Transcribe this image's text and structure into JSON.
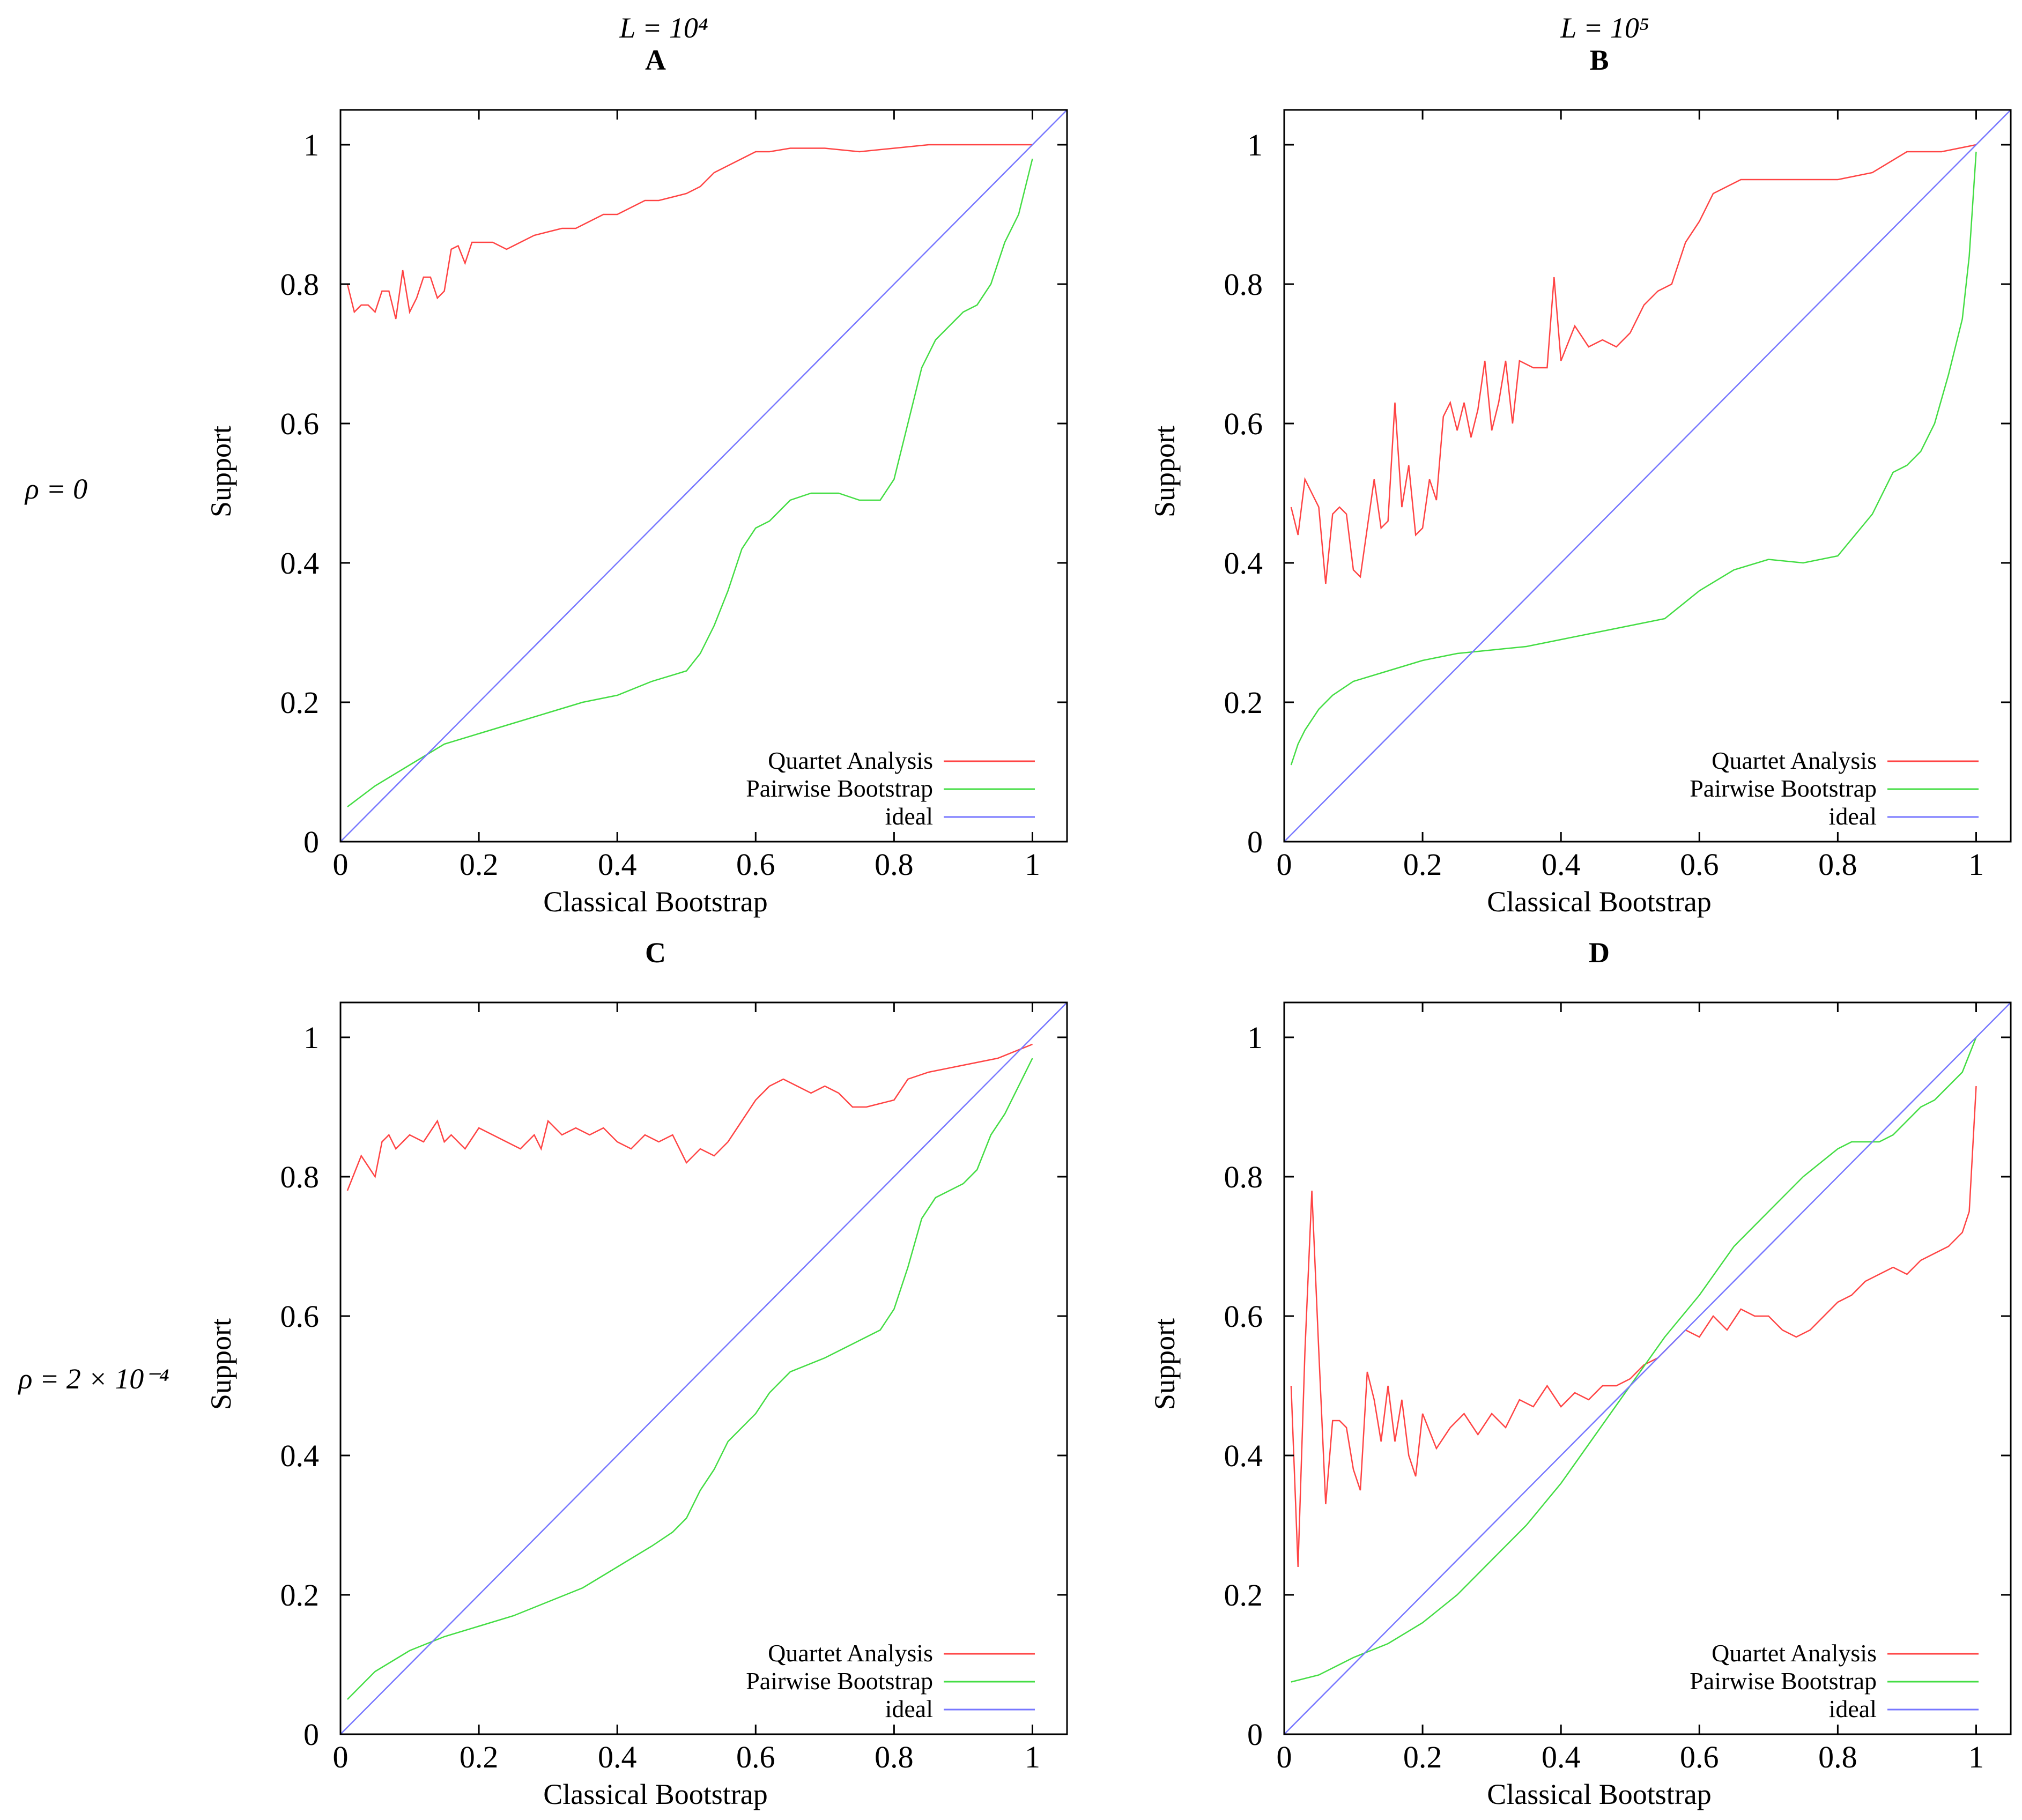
{
  "figure": {
    "column_titles": [
      "L = 10⁴",
      "L = 10⁵"
    ],
    "row_labels": [
      "ρ = 0",
      "ρ = 2 × 10⁻⁴"
    ]
  },
  "chart_data": [
    {
      "type": "line",
      "title": "A",
      "xlabel": "Classical Bootstrap",
      "ylabel": "Support",
      "xlim": [
        0,
        1.05
      ],
      "ylim": [
        0,
        1.05
      ],
      "xticks": [
        0,
        0.2,
        0.4,
        0.6,
        0.8,
        1
      ],
      "yticks": [
        0,
        0.2,
        0.4,
        0.6,
        0.8,
        1
      ],
      "legend": "bottom-right",
      "series": [
        {
          "name": "Quartet Analysis",
          "color": "#ff4444",
          "x": [
            0.01,
            0.02,
            0.03,
            0.04,
            0.05,
            0.06,
            0.07,
            0.08,
            0.09,
            0.1,
            0.11,
            0.12,
            0.13,
            0.14,
            0.15,
            0.16,
            0.17,
            0.18,
            0.19,
            0.2,
            0.22,
            0.24,
            0.26,
            0.28,
            0.3,
            0.32,
            0.34,
            0.36,
            0.38,
            0.4,
            0.42,
            0.44,
            0.46,
            0.48,
            0.5,
            0.52,
            0.54,
            0.56,
            0.58,
            0.6,
            0.62,
            0.65,
            0.7,
            0.75,
            0.8,
            0.85,
            0.9,
            0.95,
            1.0
          ],
          "y": [
            0.8,
            0.76,
            0.77,
            0.77,
            0.76,
            0.79,
            0.79,
            0.75,
            0.82,
            0.76,
            0.78,
            0.81,
            0.81,
            0.78,
            0.79,
            0.85,
            0.855,
            0.83,
            0.86,
            0.86,
            0.86,
            0.85,
            0.86,
            0.87,
            0.875,
            0.88,
            0.88,
            0.89,
            0.9,
            0.9,
            0.91,
            0.92,
            0.92,
            0.925,
            0.93,
            0.94,
            0.96,
            0.97,
            0.98,
            0.99,
            0.99,
            0.995,
            0.995,
            0.99,
            0.995,
            1.0,
            1.0,
            1.0,
            1.0
          ]
        },
        {
          "name": "Pairwise Bootstrap",
          "color": "#44dd44",
          "x": [
            0.01,
            0.05,
            0.1,
            0.15,
            0.2,
            0.25,
            0.3,
            0.35,
            0.4,
            0.45,
            0.5,
            0.52,
            0.54,
            0.56,
            0.58,
            0.6,
            0.62,
            0.65,
            0.68,
            0.7,
            0.72,
            0.75,
            0.78,
            0.8,
            0.82,
            0.84,
            0.86,
            0.88,
            0.9,
            0.92,
            0.94,
            0.96,
            0.98,
            1.0
          ],
          "y": [
            0.05,
            0.08,
            0.11,
            0.14,
            0.155,
            0.17,
            0.185,
            0.2,
            0.21,
            0.23,
            0.245,
            0.27,
            0.31,
            0.36,
            0.42,
            0.45,
            0.46,
            0.49,
            0.5,
            0.5,
            0.5,
            0.49,
            0.49,
            0.52,
            0.6,
            0.68,
            0.72,
            0.74,
            0.76,
            0.77,
            0.8,
            0.86,
            0.9,
            0.98
          ]
        },
        {
          "name": "ideal",
          "color": "#7777ff",
          "x": [
            0,
            1.05
          ],
          "y": [
            0,
            1.05
          ]
        }
      ]
    },
    {
      "type": "line",
      "title": "B",
      "xlabel": "Classical Bootstrap",
      "ylabel": "Support",
      "xlim": [
        0,
        1.05
      ],
      "ylim": [
        0,
        1.05
      ],
      "xticks": [
        0,
        0.2,
        0.4,
        0.6,
        0.8,
        1
      ],
      "yticks": [
        0,
        0.2,
        0.4,
        0.6,
        0.8,
        1
      ],
      "legend": "bottom-right",
      "series": [
        {
          "name": "Quartet Analysis",
          "color": "#ff4444",
          "x": [
            0.01,
            0.02,
            0.03,
            0.04,
            0.05,
            0.06,
            0.07,
            0.08,
            0.09,
            0.1,
            0.11,
            0.12,
            0.13,
            0.14,
            0.15,
            0.16,
            0.17,
            0.18,
            0.19,
            0.2,
            0.21,
            0.22,
            0.23,
            0.24,
            0.25,
            0.26,
            0.27,
            0.28,
            0.29,
            0.3,
            0.31,
            0.32,
            0.33,
            0.34,
            0.36,
            0.38,
            0.39,
            0.4,
            0.42,
            0.44,
            0.46,
            0.48,
            0.5,
            0.52,
            0.54,
            0.56,
            0.58,
            0.6,
            0.62,
            0.64,
            0.66,
            0.7,
            0.75,
            0.8,
            0.85,
            0.9,
            0.95,
            1.0
          ],
          "y": [
            0.48,
            0.44,
            0.52,
            0.5,
            0.48,
            0.37,
            0.47,
            0.48,
            0.47,
            0.39,
            0.38,
            0.45,
            0.52,
            0.45,
            0.46,
            0.63,
            0.48,
            0.54,
            0.44,
            0.45,
            0.52,
            0.49,
            0.61,
            0.63,
            0.59,
            0.63,
            0.58,
            0.62,
            0.69,
            0.59,
            0.63,
            0.69,
            0.6,
            0.69,
            0.68,
            0.68,
            0.81,
            0.69,
            0.74,
            0.71,
            0.72,
            0.71,
            0.73,
            0.77,
            0.79,
            0.8,
            0.86,
            0.89,
            0.93,
            0.94,
            0.95,
            0.95,
            0.95,
            0.95,
            0.96,
            0.99,
            0.99,
            1.0
          ]
        },
        {
          "name": "Pairwise Bootstrap",
          "color": "#44dd44",
          "x": [
            0.01,
            0.02,
            0.03,
            0.05,
            0.07,
            0.1,
            0.15,
            0.2,
            0.25,
            0.3,
            0.35,
            0.4,
            0.45,
            0.5,
            0.55,
            0.6,
            0.65,
            0.7,
            0.75,
            0.8,
            0.85,
            0.88,
            0.9,
            0.92,
            0.94,
            0.96,
            0.98,
            0.99,
            1.0
          ],
          "y": [
            0.11,
            0.14,
            0.16,
            0.19,
            0.21,
            0.23,
            0.245,
            0.26,
            0.27,
            0.275,
            0.28,
            0.29,
            0.3,
            0.31,
            0.32,
            0.36,
            0.39,
            0.405,
            0.4,
            0.41,
            0.47,
            0.53,
            0.54,
            0.56,
            0.6,
            0.67,
            0.75,
            0.84,
            0.99
          ]
        },
        {
          "name": "ideal",
          "color": "#7777ff",
          "x": [
            0,
            1.05
          ],
          "y": [
            0,
            1.05
          ]
        }
      ]
    },
    {
      "type": "line",
      "title": "C",
      "xlabel": "Classical Bootstrap",
      "ylabel": "Support",
      "xlim": [
        0,
        1.05
      ],
      "ylim": [
        0,
        1.05
      ],
      "xticks": [
        0,
        0.2,
        0.4,
        0.6,
        0.8,
        1
      ],
      "yticks": [
        0,
        0.2,
        0.4,
        0.6,
        0.8,
        1
      ],
      "legend": "bottom-right",
      "series": [
        {
          "name": "Quartet Analysis",
          "color": "#ff4444",
          "x": [
            0.01,
            0.03,
            0.05,
            0.06,
            0.07,
            0.08,
            0.1,
            0.12,
            0.14,
            0.15,
            0.16,
            0.18,
            0.2,
            0.22,
            0.24,
            0.26,
            0.28,
            0.29,
            0.3,
            0.32,
            0.34,
            0.36,
            0.38,
            0.4,
            0.42,
            0.44,
            0.46,
            0.48,
            0.5,
            0.52,
            0.54,
            0.56,
            0.58,
            0.6,
            0.62,
            0.64,
            0.66,
            0.68,
            0.7,
            0.72,
            0.74,
            0.76,
            0.78,
            0.8,
            0.82,
            0.85,
            0.9,
            0.95,
            1.0
          ],
          "y": [
            0.78,
            0.83,
            0.8,
            0.85,
            0.86,
            0.84,
            0.86,
            0.85,
            0.88,
            0.85,
            0.86,
            0.84,
            0.87,
            0.86,
            0.85,
            0.84,
            0.86,
            0.84,
            0.88,
            0.86,
            0.87,
            0.86,
            0.87,
            0.85,
            0.84,
            0.86,
            0.85,
            0.86,
            0.82,
            0.84,
            0.83,
            0.85,
            0.88,
            0.91,
            0.93,
            0.94,
            0.93,
            0.92,
            0.93,
            0.92,
            0.9,
            0.9,
            0.905,
            0.91,
            0.94,
            0.95,
            0.96,
            0.97,
            0.99
          ]
        },
        {
          "name": "Pairwise Bootstrap",
          "color": "#44dd44",
          "x": [
            0.01,
            0.05,
            0.1,
            0.15,
            0.2,
            0.25,
            0.3,
            0.35,
            0.4,
            0.45,
            0.48,
            0.5,
            0.52,
            0.54,
            0.56,
            0.58,
            0.6,
            0.62,
            0.65,
            0.7,
            0.72,
            0.74,
            0.76,
            0.78,
            0.8,
            0.82,
            0.84,
            0.86,
            0.88,
            0.9,
            0.92,
            0.94,
            0.96,
            0.98,
            1.0
          ],
          "y": [
            0.05,
            0.09,
            0.12,
            0.14,
            0.155,
            0.17,
            0.19,
            0.21,
            0.24,
            0.27,
            0.29,
            0.31,
            0.35,
            0.38,
            0.42,
            0.44,
            0.46,
            0.49,
            0.52,
            0.54,
            0.55,
            0.56,
            0.57,
            0.58,
            0.61,
            0.67,
            0.74,
            0.77,
            0.78,
            0.79,
            0.81,
            0.86,
            0.89,
            0.93,
            0.97
          ]
        },
        {
          "name": "ideal",
          "color": "#7777ff",
          "x": [
            0,
            1.05
          ],
          "y": [
            0,
            1.05
          ]
        }
      ]
    },
    {
      "type": "line",
      "title": "D",
      "xlabel": "Classical Bootstrap",
      "ylabel": "Support",
      "xlim": [
        0,
        1.05
      ],
      "ylim": [
        0,
        1.05
      ],
      "xticks": [
        0,
        0.2,
        0.4,
        0.6,
        0.8,
        1
      ],
      "yticks": [
        0,
        0.2,
        0.4,
        0.6,
        0.8,
        1
      ],
      "legend": "bottom-right",
      "series": [
        {
          "name": "Quartet Analysis",
          "color": "#ff4444",
          "x": [
            0.01,
            0.02,
            0.03,
            0.04,
            0.05,
            0.06,
            0.07,
            0.08,
            0.09,
            0.1,
            0.11,
            0.12,
            0.13,
            0.14,
            0.15,
            0.16,
            0.17,
            0.18,
            0.19,
            0.2,
            0.22,
            0.24,
            0.26,
            0.28,
            0.3,
            0.32,
            0.34,
            0.36,
            0.38,
            0.4,
            0.42,
            0.44,
            0.46,
            0.48,
            0.5,
            0.52,
            0.54,
            0.56,
            0.58,
            0.6,
            0.62,
            0.64,
            0.66,
            0.68,
            0.7,
            0.72,
            0.74,
            0.76,
            0.78,
            0.8,
            0.82,
            0.84,
            0.86,
            0.88,
            0.9,
            0.92,
            0.94,
            0.96,
            0.98,
            0.99,
            1.0
          ],
          "y": [
            0.5,
            0.24,
            0.55,
            0.78,
            0.55,
            0.33,
            0.45,
            0.45,
            0.44,
            0.38,
            0.35,
            0.52,
            0.48,
            0.42,
            0.5,
            0.42,
            0.48,
            0.4,
            0.37,
            0.46,
            0.41,
            0.44,
            0.46,
            0.43,
            0.46,
            0.44,
            0.48,
            0.47,
            0.5,
            0.47,
            0.49,
            0.48,
            0.5,
            0.5,
            0.51,
            0.53,
            0.54,
            0.56,
            0.58,
            0.57,
            0.6,
            0.58,
            0.61,
            0.6,
            0.6,
            0.58,
            0.57,
            0.58,
            0.6,
            0.62,
            0.63,
            0.65,
            0.66,
            0.67,
            0.66,
            0.68,
            0.69,
            0.7,
            0.72,
            0.75,
            0.93
          ]
        },
        {
          "name": "Pairwise Bootstrap",
          "color": "#44dd44",
          "x": [
            0.01,
            0.05,
            0.08,
            0.1,
            0.15,
            0.2,
            0.25,
            0.3,
            0.35,
            0.4,
            0.45,
            0.5,
            0.55,
            0.6,
            0.65,
            0.7,
            0.75,
            0.8,
            0.82,
            0.84,
            0.86,
            0.88,
            0.9,
            0.92,
            0.94,
            0.96,
            0.98,
            1.0
          ],
          "y": [
            0.075,
            0.085,
            0.1,
            0.11,
            0.13,
            0.16,
            0.2,
            0.25,
            0.3,
            0.36,
            0.43,
            0.5,
            0.57,
            0.63,
            0.7,
            0.75,
            0.8,
            0.84,
            0.85,
            0.85,
            0.85,
            0.86,
            0.88,
            0.9,
            0.91,
            0.93,
            0.95,
            1.0
          ]
        },
        {
          "name": "ideal",
          "color": "#7777ff",
          "x": [
            0,
            1.05
          ],
          "y": [
            0,
            1.05
          ]
        }
      ]
    }
  ]
}
